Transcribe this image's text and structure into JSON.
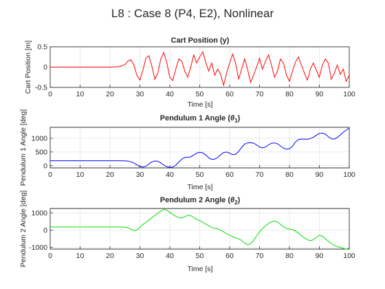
{
  "figure": {
    "title": "L8 : Case 8 (P4, E2), Nonlinear"
  },
  "chart_data": [
    {
      "type": "line",
      "title": "Cart Position (y)",
      "title_sub": "",
      "title_suffix": "",
      "xlabel": "Time [s]",
      "ylabel": "Cart Position [m]",
      "xlim": [
        0,
        100
      ],
      "ylim": [
        -0.5,
        0.5
      ],
      "xticks": [
        0,
        10,
        20,
        30,
        40,
        50,
        60,
        70,
        80,
        90,
        100
      ],
      "yticks": [
        -0.5,
        0,
        0.5
      ],
      "yticklabels": [
        "-0.5",
        "0",
        "0.5"
      ],
      "grid": true,
      "series": [
        {
          "color": "#ff0000",
          "x": [
            0,
            20,
            23,
            25,
            26,
            27,
            28,
            29,
            30,
            31,
            32,
            33,
            34,
            35,
            36,
            37,
            38,
            39,
            40,
            41,
            42,
            43,
            44,
            45,
            46,
            47,
            48,
            49,
            50,
            51,
            52,
            53,
            54,
            55,
            56,
            57,
            58,
            59,
            60,
            61,
            62,
            63,
            64,
            65,
            66,
            67,
            68,
            69,
            70,
            71,
            72,
            73,
            74,
            75,
            76,
            77,
            78,
            79,
            80,
            81,
            82,
            83,
            84,
            85,
            86,
            87,
            88,
            89,
            90,
            91,
            92,
            93,
            94,
            95,
            96,
            97,
            98,
            99,
            100
          ],
          "y": [
            0,
            0,
            0.01,
            0.06,
            0.15,
            0.18,
            0.05,
            -0.2,
            -0.32,
            -0.08,
            0.22,
            0.28,
            0.02,
            -0.3,
            -0.15,
            0.2,
            0.36,
            0.1,
            -0.25,
            -0.33,
            -0.05,
            0.2,
            0.15,
            -0.1,
            -0.25,
            0.0,
            0.3,
            0.1,
            0.25,
            0.38,
            0.12,
            -0.1,
            0.1,
            -0.2,
            -0.05,
            -0.18,
            -0.45,
            -0.15,
            0.1,
            0.32,
            0.1,
            -0.3,
            -0.05,
            0.2,
            -0.05,
            -0.38,
            -0.2,
            0.0,
            0.22,
            -0.05,
            0.15,
            0.3,
            0.05,
            -0.25,
            -0.1,
            0.2,
            0.1,
            -0.2,
            -0.35,
            -0.1,
            0.12,
            0.25,
            0.05,
            -0.15,
            -0.32,
            -0.05,
            0.1,
            -0.08,
            -0.25,
            0.05,
            0.2,
            0.1,
            -0.3,
            -0.15,
            0.05,
            -0.18,
            -0.05,
            -0.35,
            -0.2
          ]
        }
      ]
    },
    {
      "type": "line",
      "title": "Pendulum 1 Angle (",
      "title_sub": "1",
      "title_suffix": ")",
      "xlabel": "Time [s]",
      "ylabel": "Pendulum 1 Angle [deg]",
      "xlim": [
        0,
        100
      ],
      "ylim": [
        -80,
        1400
      ],
      "xticks": [
        0,
        10,
        20,
        30,
        40,
        50,
        60,
        70,
        80,
        90,
        100
      ],
      "yticks": [
        0,
        500,
        1000
      ],
      "yticklabels": [
        "0",
        "500",
        "1000"
      ],
      "grid": true,
      "series": [
        {
          "color": "#0000ff",
          "x": [
            0,
            20,
            23,
            25,
            26,
            27,
            28,
            29,
            30,
            31,
            32,
            33,
            34,
            35,
            36,
            37,
            38,
            39,
            40,
            41,
            42,
            43,
            44,
            45,
            46,
            47,
            48,
            49,
            50,
            51,
            52,
            53,
            54,
            55,
            56,
            57,
            58,
            59,
            60,
            61,
            62,
            63,
            64,
            65,
            66,
            67,
            68,
            69,
            70,
            71,
            72,
            73,
            74,
            75,
            76,
            77,
            78,
            79,
            80,
            81,
            82,
            83,
            84,
            85,
            86,
            87,
            88,
            89,
            90,
            91,
            92,
            93,
            94,
            95,
            96,
            97,
            98,
            99,
            100
          ],
          "y": [
            180,
            180,
            180,
            175,
            165,
            140,
            100,
            30,
            -30,
            -50,
            -20,
            60,
            140,
            170,
            160,
            100,
            20,
            -40,
            -60,
            -50,
            20,
            130,
            240,
            300,
            310,
            320,
            390,
            460,
            490,
            470,
            390,
            290,
            230,
            240,
            300,
            400,
            480,
            500,
            460,
            400,
            420,
            520,
            660,
            790,
            830,
            840,
            820,
            760,
            680,
            650,
            680,
            760,
            820,
            830,
            800,
            720,
            640,
            600,
            620,
            710,
            860,
            950,
            970,
            970,
            960,
            990,
            1040,
            1110,
            1180,
            1190,
            1150,
            1060,
            980,
            970,
            1030,
            1120,
            1220,
            1300,
            1370
          ]
        }
      ]
    },
    {
      "type": "line",
      "title": "Pendulum 2 Angle (",
      "title_sub": "2",
      "title_suffix": ")",
      "xlabel": "Time [s]",
      "ylabel": "Pendulum 2 Angle [deg]",
      "xlim": [
        0,
        100
      ],
      "ylim": [
        -1100,
        1250
      ],
      "xticks": [
        0,
        10,
        20,
        30,
        40,
        50,
        60,
        70,
        80,
        90,
        100
      ],
      "yticks": [
        -1000,
        0,
        1000
      ],
      "yticklabels": [
        "-1000",
        "0",
        "1000"
      ],
      "grid": true,
      "series": [
        {
          "color": "#00e000",
          "x": [
            0,
            20,
            23,
            25,
            26,
            27,
            28,
            29,
            30,
            31,
            32,
            33,
            34,
            35,
            36,
            37,
            38,
            39,
            40,
            41,
            42,
            43,
            44,
            45,
            46,
            47,
            48,
            49,
            50,
            51,
            52,
            53,
            54,
            55,
            56,
            57,
            58,
            59,
            60,
            61,
            62,
            63,
            64,
            65,
            66,
            67,
            68,
            69,
            70,
            71,
            72,
            73,
            74,
            75,
            76,
            77,
            78,
            79,
            80,
            81,
            82,
            83,
            84,
            85,
            86,
            87,
            88,
            89,
            90,
            91,
            92,
            93,
            94,
            95,
            96,
            97,
            98,
            99,
            100
          ],
          "y": [
            180,
            180,
            180,
            170,
            130,
            60,
            -30,
            0,
            150,
            320,
            450,
            580,
            720,
            850,
            980,
            1100,
            1200,
            1150,
            1020,
            900,
            800,
            720,
            700,
            780,
            860,
            830,
            720,
            620,
            550,
            450,
            350,
            250,
            150,
            100,
            80,
            0,
            -100,
            -200,
            -300,
            -380,
            -450,
            -500,
            -600,
            -750,
            -850,
            -800,
            -600,
            -350,
            -100,
            100,
            250,
            380,
            480,
            530,
            460,
            330,
            200,
            100,
            60,
            20,
            -50,
            -170,
            -320,
            -450,
            -560,
            -620,
            -560,
            -420,
            -300,
            -350,
            -500,
            -650,
            -780,
            -880,
            -950,
            -1000,
            -1060,
            -1100,
            -1050
          ]
        }
      ]
    }
  ]
}
